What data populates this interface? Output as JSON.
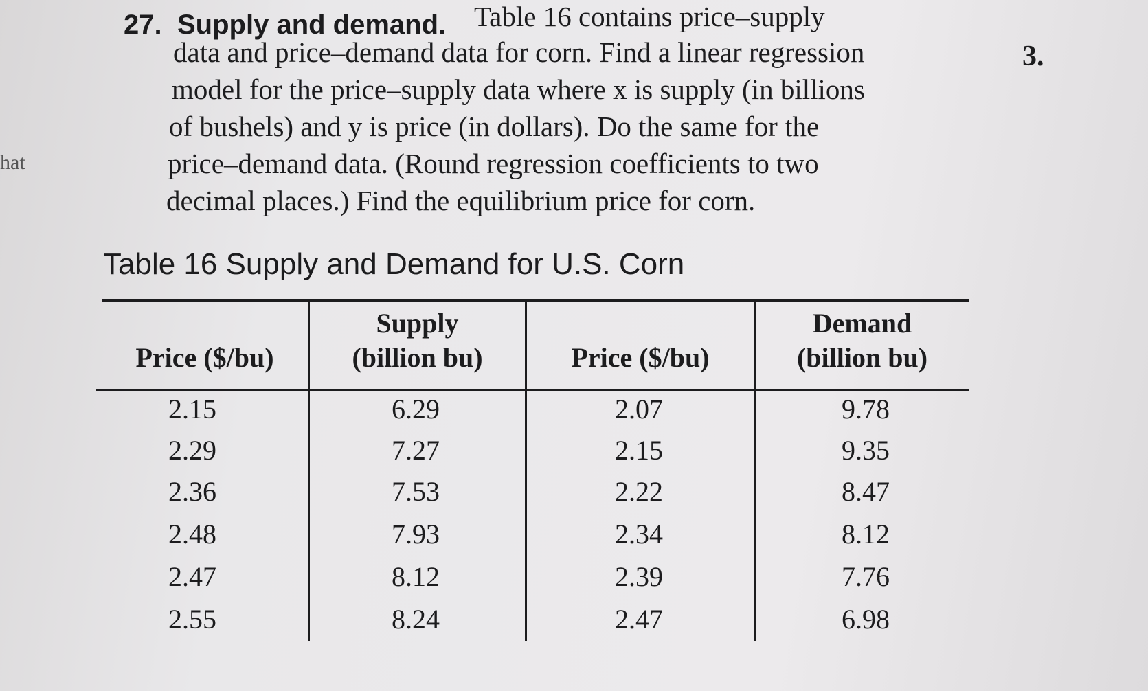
{
  "problem": {
    "number": "27.",
    "heading": "Supply and demand.",
    "lines": [
      "Table 16 contains price–supply",
      "data and price–demand data for corn. Find a linear regression",
      "model for the price–supply data where x is supply (in billions",
      "of bushels) and y is price (in dollars). Do the same for the",
      "price–demand data. (Round regression coefficients to two",
      "decimal places.) Find the equilibrium price for corn."
    ]
  },
  "side_number": "3.",
  "margin_text": "hat",
  "table": {
    "title": "Table 16 Supply and Demand for U.S. Corn",
    "headers": [
      [
        "Price ($/bu)"
      ],
      [
        "Supply",
        "(billion bu)"
      ],
      [
        "Price ($/bu)"
      ],
      [
        "Demand",
        "(billion bu)"
      ]
    ],
    "rows": [
      [
        "2.15",
        "6.29",
        "2.07",
        "9.78"
      ],
      [
        "2.29",
        "7.27",
        "2.15",
        "9.35"
      ],
      [
        "2.36",
        "7.53",
        "2.22",
        "8.47"
      ],
      [
        "2.48",
        "7.93",
        "2.34",
        "8.12"
      ],
      [
        "2.47",
        "8.12",
        "2.39",
        "7.76"
      ],
      [
        "2.55",
        "8.24",
        "2.47",
        "6.98"
      ]
    ]
  }
}
